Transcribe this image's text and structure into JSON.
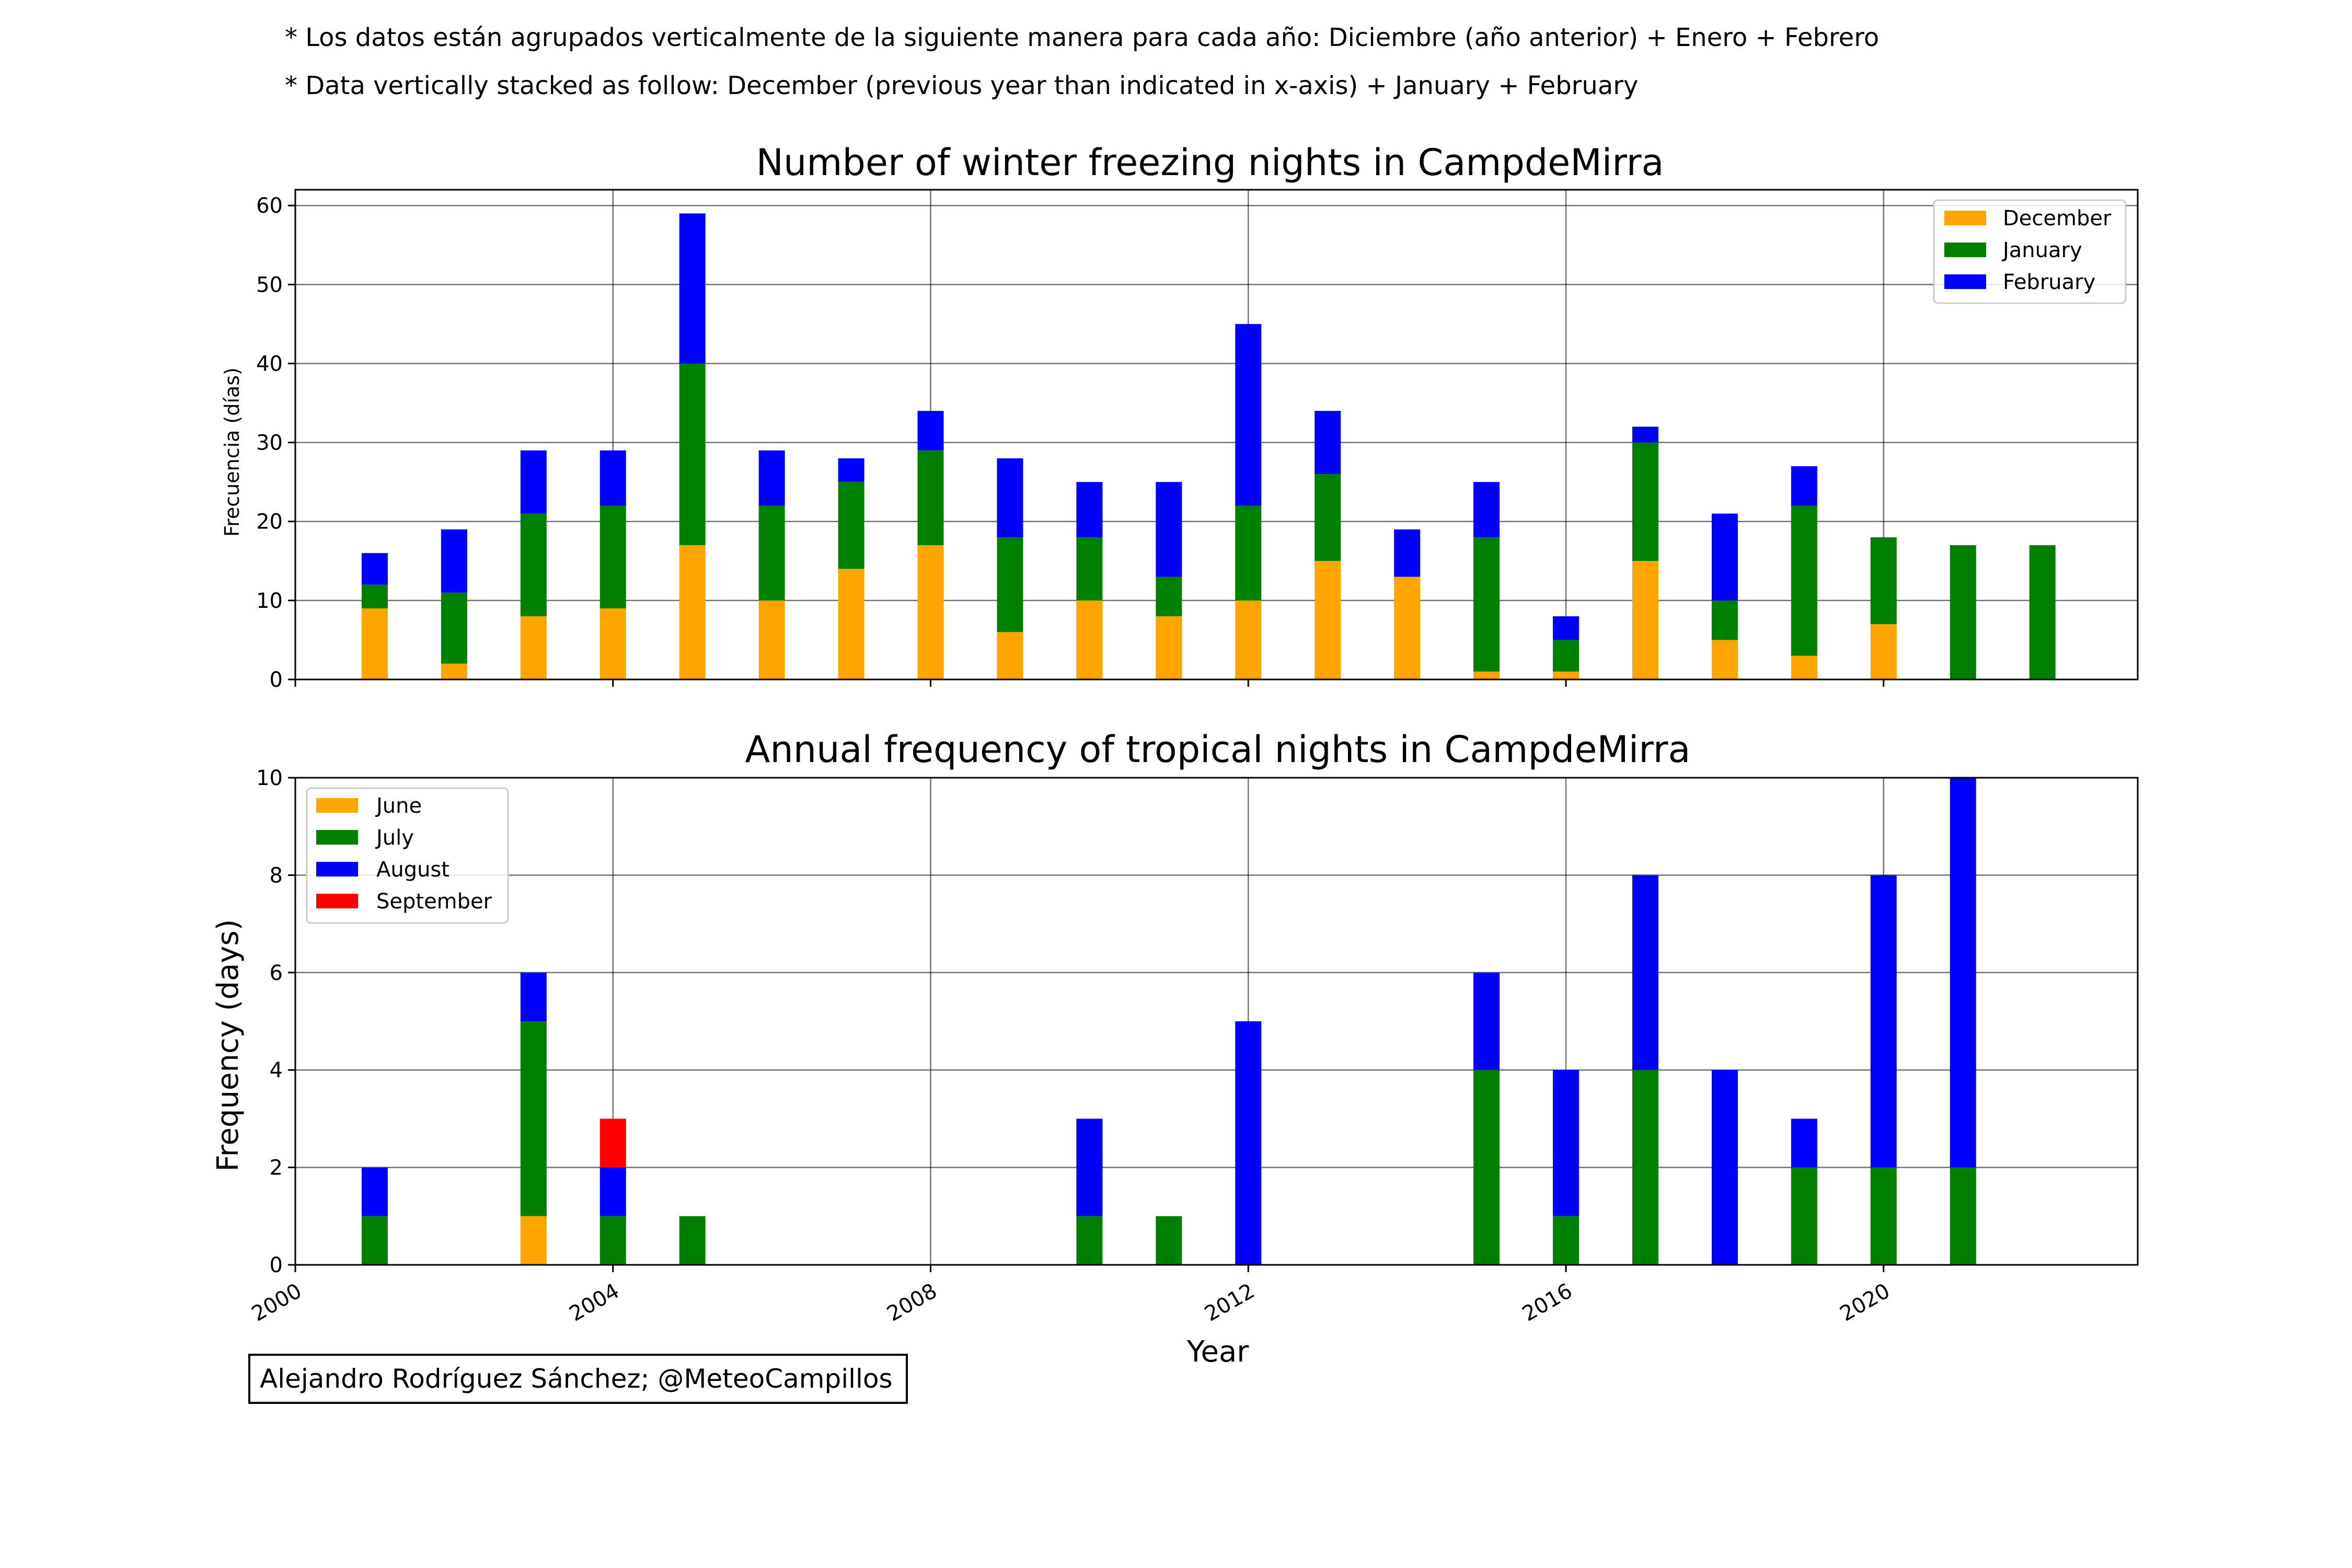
{
  "notes": {
    "line1": "* Los datos están agrupados verticalmente de la siguiente manera para cada año: Diciembre (año anterior) + Enero  + Febrero",
    "line2": "* Data vertically stacked as follow: December (previous year than indicated in x-axis) + January  + February"
  },
  "credit": "Alejandro Rodríguez Sánchez; @MeteoCampillos",
  "chart_data": [
    {
      "type": "bar",
      "stacked": true,
      "title": "Number of winter freezing nights in CampdeMirra",
      "xlabel": "",
      "ylabel": "Frecuencia (días)",
      "ylim": [
        0,
        62
      ],
      "xlim": [
        2000,
        2023.2
      ],
      "yticks": [
        "0",
        "10",
        "20",
        "30",
        "40",
        "50",
        "60"
      ],
      "xticks": [
        2000,
        2004,
        2008,
        2012,
        2016,
        2020
      ],
      "show_xtick_labels": false,
      "grid": true,
      "legend": "top-right",
      "categories": [
        2001,
        2002,
        2003,
        2004,
        2005,
        2006,
        2007,
        2008,
        2009,
        2010,
        2011,
        2012,
        2013,
        2014,
        2015,
        2016,
        2017,
        2018,
        2019,
        2020,
        2021,
        2022
      ],
      "series": [
        {
          "name": "December",
          "color": "#FFA500",
          "values": [
            9,
            2,
            8,
            9,
            17,
            10,
            14,
            17,
            6,
            10,
            8,
            10,
            15,
            13,
            1,
            1,
            15,
            5,
            3,
            7,
            0,
            0
          ]
        },
        {
          "name": "January",
          "color": "#008000",
          "values": [
            3,
            9,
            13,
            13,
            23,
            12,
            11,
            12,
            12,
            8,
            5,
            12,
            11,
            0,
            17,
            4,
            15,
            5,
            19,
            11,
            17,
            17
          ]
        },
        {
          "name": "February",
          "color": "#0000FF",
          "values": [
            4,
            8,
            8,
            7,
            19,
            7,
            3,
            5,
            10,
            7,
            12,
            23,
            8,
            6,
            7,
            3,
            2,
            11,
            5,
            0,
            0,
            0
          ]
        }
      ]
    },
    {
      "type": "bar",
      "stacked": true,
      "title": "Annual frequency of tropical nights in CampdeMirra",
      "xlabel": "Year",
      "ylabel": "Frequency (days)",
      "ylim": [
        0,
        10
      ],
      "xlim": [
        2000,
        2023.2
      ],
      "yticks": [
        "0",
        "2",
        "4",
        "6",
        "8",
        "10"
      ],
      "xticks": [
        2000,
        2004,
        2008,
        2012,
        2016,
        2020
      ],
      "xtick_labels": [
        "2000",
        "2004",
        "2008",
        "2012",
        "2016",
        "2020"
      ],
      "show_xtick_labels": true,
      "grid": true,
      "legend": "top-left",
      "categories": [
        2001,
        2002,
        2003,
        2004,
        2005,
        2006,
        2007,
        2008,
        2009,
        2010,
        2011,
        2012,
        2013,
        2014,
        2015,
        2016,
        2017,
        2018,
        2019,
        2020,
        2021,
        2022
      ],
      "series": [
        {
          "name": "June",
          "color": "#FFA500",
          "values": [
            0,
            0,
            1,
            0,
            0,
            0,
            0,
            0,
            0,
            0,
            0,
            0,
            0,
            0,
            0,
            0,
            0,
            0,
            0,
            0,
            0,
            0
          ]
        },
        {
          "name": "July",
          "color": "#008000",
          "values": [
            1,
            0,
            4,
            1,
            1,
            0,
            0,
            0,
            0,
            1,
            1,
            0,
            0,
            0,
            4,
            1,
            4,
            0,
            2,
            2,
            2,
            0
          ]
        },
        {
          "name": "August",
          "color": "#0000FF",
          "values": [
            1,
            0,
            1,
            1,
            0,
            0,
            0,
            0,
            0,
            2,
            0,
            5,
            0,
            0,
            2,
            3,
            4,
            4,
            1,
            6,
            8,
            0
          ]
        },
        {
          "name": "September",
          "color": "#FF0000",
          "values": [
            0,
            0,
            0,
            1,
            0,
            0,
            0,
            0,
            0,
            0,
            0,
            0,
            0,
            0,
            0,
            0,
            0,
            0,
            0,
            0,
            0,
            0
          ]
        }
      ]
    }
  ]
}
